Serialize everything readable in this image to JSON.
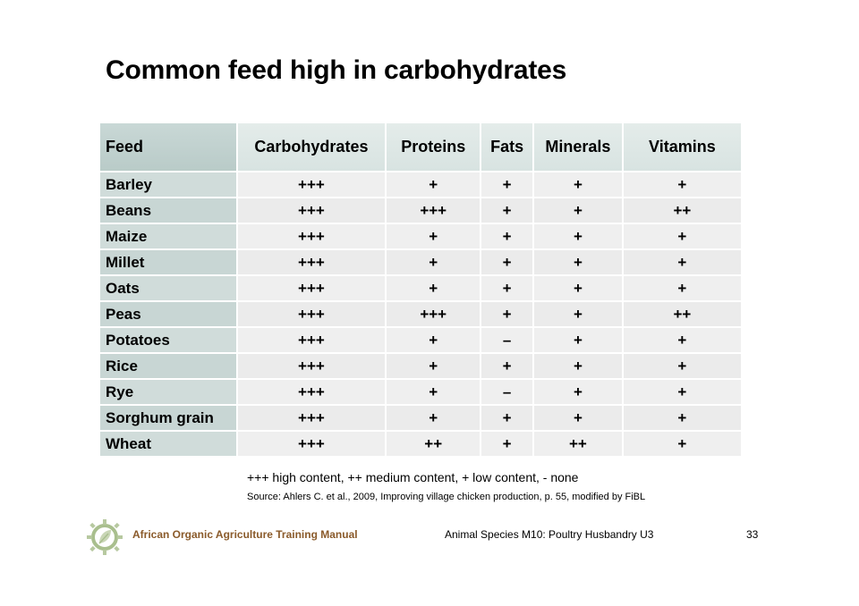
{
  "title": "Common feed high in carbohydrates",
  "table": {
    "headers": [
      "Feed",
      "Carbohydrates",
      "Proteins",
      "Fats",
      "Minerals",
      "Vitamins"
    ],
    "rows": [
      [
        "Barley",
        "+++",
        "+",
        "+",
        "+",
        "+"
      ],
      [
        "Beans",
        "+++",
        "+++",
        "+",
        "+",
        "++"
      ],
      [
        "Maize",
        "+++",
        "+",
        "+",
        "+",
        "+"
      ],
      [
        "Millet",
        "+++",
        "+",
        "+",
        "+",
        "+"
      ],
      [
        "Oats",
        "+++",
        "+",
        "+",
        "+",
        "+"
      ],
      [
        "Peas",
        "+++",
        "+++",
        "+",
        "+",
        "++"
      ],
      [
        "Potatoes",
        "+++",
        "+",
        "–",
        "+",
        "+"
      ],
      [
        "Rice",
        "+++",
        "+",
        "+",
        "+",
        "+"
      ],
      [
        "Rye",
        "+++",
        "+",
        "–",
        "+",
        "+"
      ],
      [
        "Sorghum grain",
        "+++",
        "+",
        "+",
        "+",
        "+"
      ],
      [
        "Wheat",
        "+++",
        "++",
        "+",
        "++",
        "+"
      ]
    ]
  },
  "legend": "+++ high content, ++ medium content, + low content, - none",
  "source": "Source: Ahlers C. et al., 2009, Improving village chicken production, p. 55, modified by FiBL",
  "footer": {
    "manual": "African Organic Agriculture Training Manual",
    "module": "Animal Species M10: Poultry Husbandry U3",
    "page": "33",
    "logo_icon": "sun-leaf-logo-icon",
    "accent_color": "#8a5a2a"
  }
}
